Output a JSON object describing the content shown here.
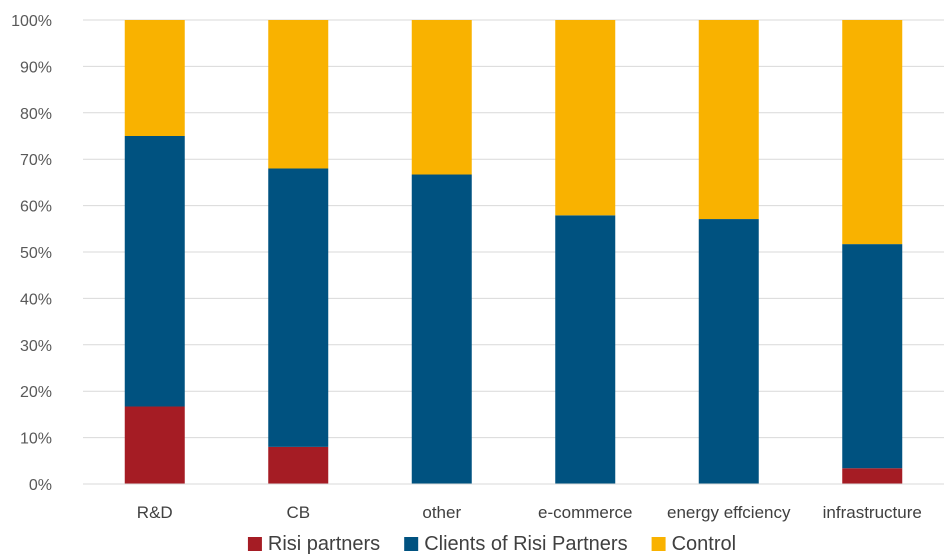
{
  "chart_data": {
    "type": "bar",
    "stacked": true,
    "percent_stacked": true,
    "categories": [
      "R&D",
      "CB",
      "other",
      "e-commerce",
      "energy effciency",
      "infrastructure"
    ],
    "series": [
      {
        "name": "Risi partners",
        "color": "#a51c24",
        "values": [
          16.7,
          8.0,
          0.0,
          0.0,
          0.0,
          3.4
        ]
      },
      {
        "name": "Clients of Risi Partners",
        "color": "#005280",
        "values": [
          58.3,
          60.0,
          66.7,
          57.9,
          57.1,
          48.3
        ]
      },
      {
        "name": "Control",
        "color": "#f9b200",
        "values": [
          25.0,
          32.0,
          33.3,
          42.1,
          42.9,
          48.3
        ]
      }
    ],
    "ylim": [
      0,
      100
    ],
    "yticks": [
      "0%",
      "10%",
      "20%",
      "30%",
      "40%",
      "50%",
      "60%",
      "70%",
      "80%",
      "90%",
      "100%"
    ],
    "grid": true,
    "legend_position": "bottom",
    "title": "",
    "xlabel": "",
    "ylabel": ""
  }
}
